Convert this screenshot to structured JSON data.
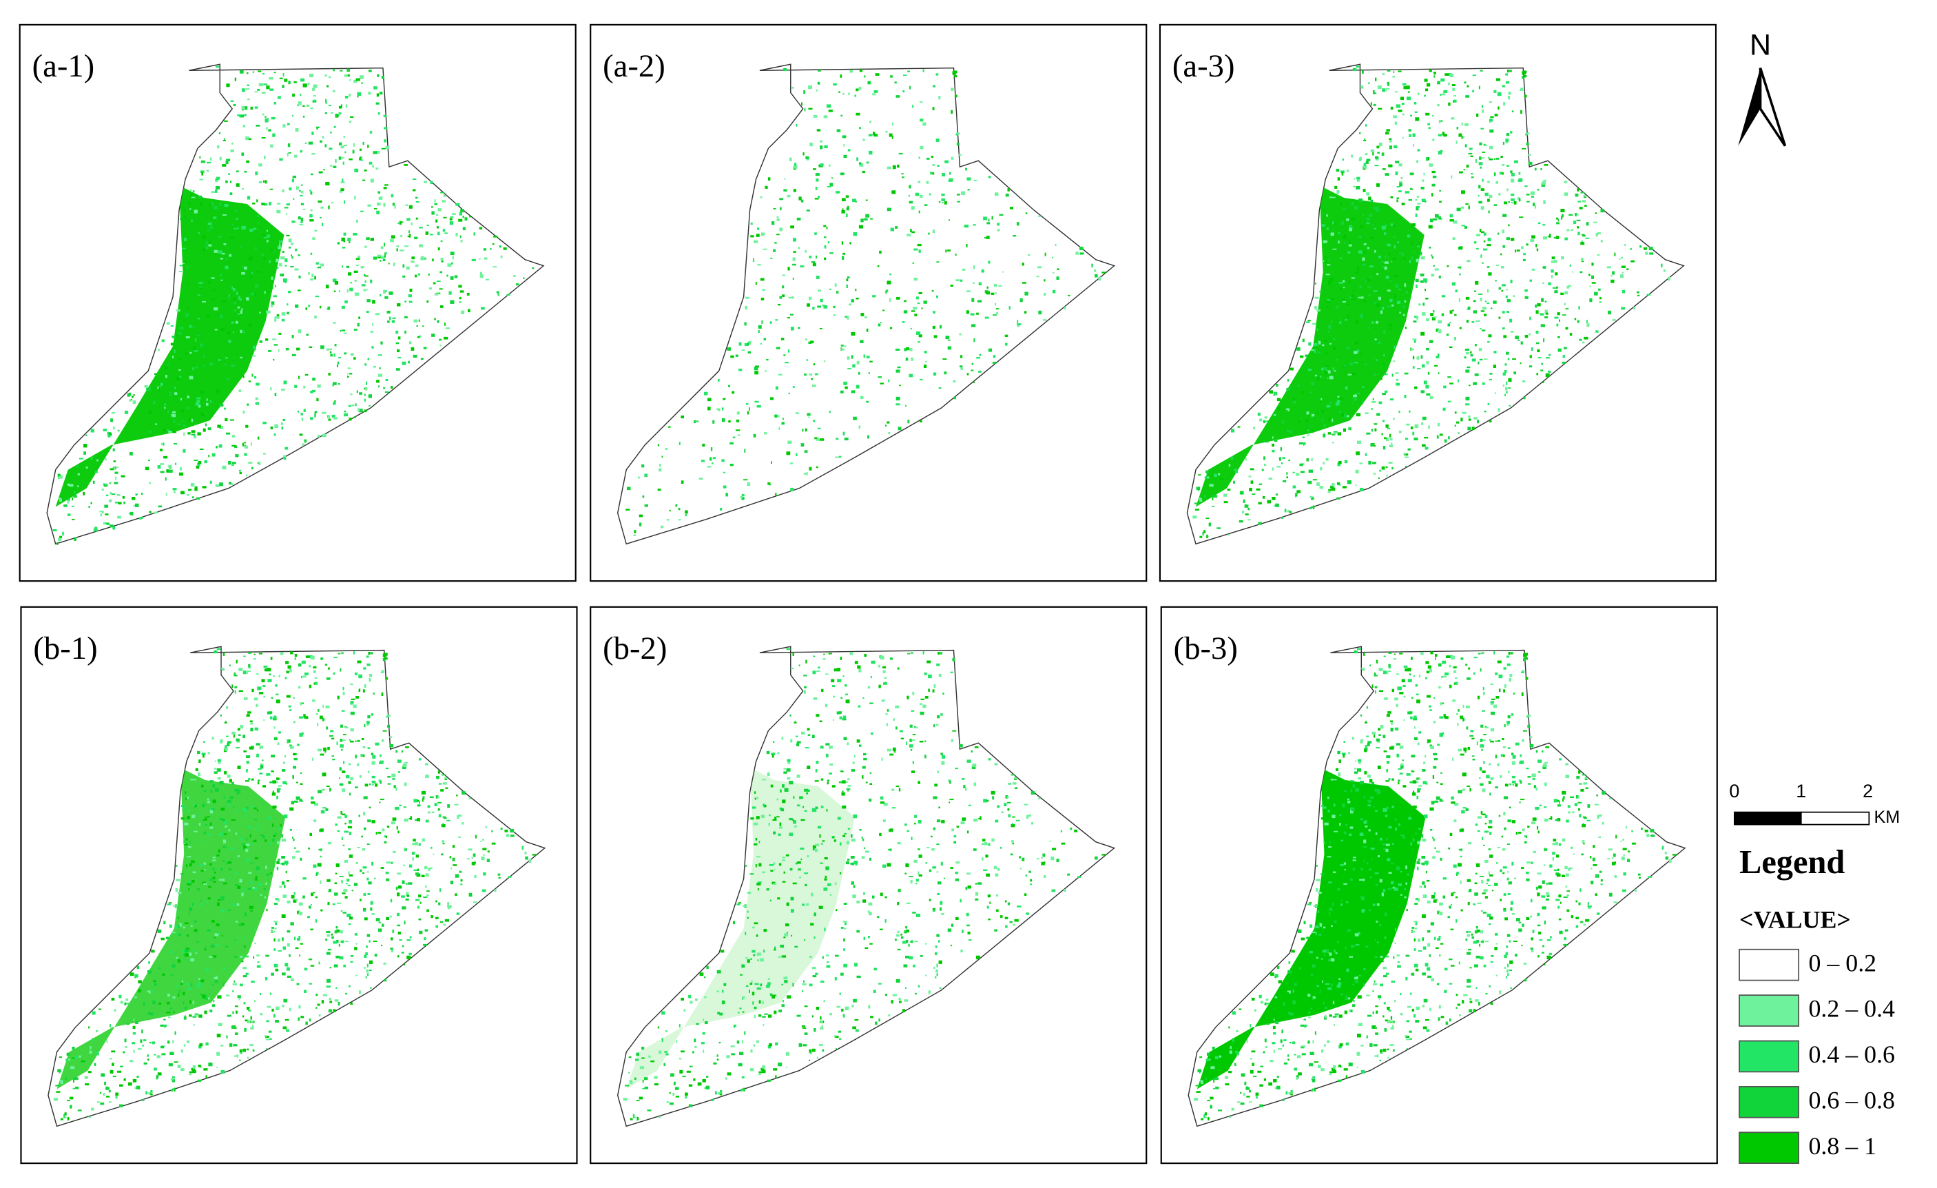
{
  "panels": [
    {
      "label": "(a-1)"
    },
    {
      "label": "(a-2)"
    },
    {
      "label": "(a-3)"
    },
    {
      "label": "(b-1)"
    },
    {
      "label": "(b-2)"
    },
    {
      "label": "(b-3)"
    }
  ],
  "north": "N",
  "scale_bar": {
    "ticks": [
      0,
      1,
      2
    ],
    "unit": "KM"
  },
  "legend": {
    "title": "Legend",
    "field": "<VALUE>",
    "items": [
      {
        "label": "0 – 0.2",
        "color": "#ffffff"
      },
      {
        "label": "0.2 – 0.4",
        "color": "#6ef29b"
      },
      {
        "label": "0.4 – 0.6",
        "color": "#22e565"
      },
      {
        "label": "0.6 – 0.8",
        "color": "#10d43a"
      },
      {
        "label": "0.8 – 1",
        "color": "#00c800"
      }
    ]
  }
}
